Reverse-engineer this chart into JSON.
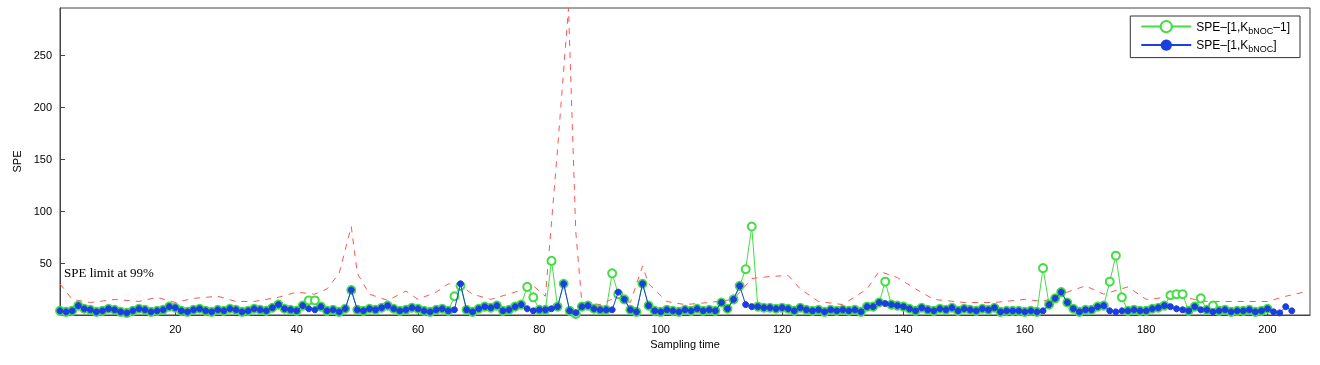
{
  "chart_data": {
    "type": "line",
    "xlabel": "Sampling time",
    "ylabel": "SPE",
    "xlim": [
      1,
      207
    ],
    "xticks": [
      20,
      40,
      60,
      80,
      100,
      120,
      140,
      160,
      180,
      200
    ],
    "ylim": [
      0,
      295
    ],
    "yticks": [
      50,
      100,
      150,
      200,
      250
    ],
    "grid": false,
    "legend": "top right",
    "annotations": [
      "SPE limit at 99%"
    ],
    "series": [
      {
        "name": "SPE–[1,K$_{bNOC}$–1]",
        "color": "#44dd44",
        "marker": "circle",
        "line_style": "solid",
        "x": [
          1,
          2,
          3,
          4,
          5,
          6,
          7,
          8,
          9,
          10,
          11,
          12,
          13,
          14,
          15,
          16,
          17,
          18,
          19,
          20,
          21,
          22,
          23,
          24,
          25,
          26,
          27,
          28,
          29,
          30,
          31,
          32,
          33,
          34,
          35,
          36,
          37,
          38,
          39,
          40,
          41,
          42,
          43,
          44,
          45,
          46,
          47,
          48,
          49,
          50,
          51,
          52,
          53,
          54,
          55,
          56,
          57,
          58,
          59,
          60,
          61,
          62,
          63,
          64,
          65,
          66,
          67,
          68,
          69,
          70,
          71,
          72,
          73,
          74,
          75,
          76,
          77,
          78,
          79,
          80,
          81,
          82,
          83,
          84,
          85,
          86,
          87,
          88,
          89,
          90,
          91,
          92,
          93,
          94,
          95,
          96,
          97,
          98,
          99,
          100,
          101,
          102,
          103,
          104,
          105,
          106,
          107,
          108,
          109,
          110,
          111,
          112,
          113,
          114,
          115,
          116,
          117,
          118,
          119,
          120,
          121,
          122,
          123,
          124,
          125,
          126,
          127,
          128,
          129,
          130,
          131,
          132,
          133,
          134,
          135,
          136,
          137,
          138,
          139,
          140,
          141,
          142,
          143,
          144,
          145,
          146,
          147,
          148,
          149,
          150,
          151,
          152,
          153,
          154,
          155,
          156,
          157,
          158,
          159,
          160,
          161,
          162,
          163,
          164,
          165,
          166,
          167,
          168,
          169,
          170,
          171,
          172,
          173,
          174,
          175,
          176,
          177,
          178,
          179,
          180,
          181,
          182,
          183,
          184,
          185,
          186,
          187,
          188,
          189,
          190,
          191,
          192,
          193,
          194,
          195,
          196,
          197,
          198,
          199,
          200
        ],
        "values": [
          4,
          3,
          4,
          9,
          6,
          5,
          3,
          4,
          6,
          5,
          3,
          2,
          4,
          6,
          5,
          3,
          4,
          5,
          8,
          7,
          4,
          3,
          5,
          6,
          4,
          3,
          5,
          4,
          6,
          5,
          3,
          4,
          6,
          5,
          4,
          7,
          10,
          6,
          5,
          4,
          9,
          14,
          14,
          8,
          4,
          5,
          3,
          6,
          24,
          5,
          4,
          6,
          5,
          7,
          9,
          6,
          4,
          5,
          7,
          6,
          4,
          3,
          5,
          6,
          4,
          18,
          28,
          5,
          3,
          6,
          8,
          7,
          9,
          4,
          5,
          8,
          10,
          27,
          17,
          5,
          5,
          52,
          8,
          30,
          4,
          1,
          8,
          9,
          6,
          5,
          5,
          40,
          20,
          15,
          5,
          3,
          30,
          9,
          4,
          3,
          5,
          4,
          3,
          5,
          4,
          6,
          4,
          5,
          4,
          12,
          6,
          15,
          28,
          44,
          85,
          8,
          7,
          7,
          6,
          7,
          6,
          4,
          7,
          5,
          4,
          5,
          3,
          5,
          4,
          5,
          4,
          5,
          3,
          8,
          8,
          12,
          32,
          10,
          9,
          8,
          6,
          4,
          7,
          5,
          4,
          6,
          5,
          7,
          4,
          6,
          5,
          4,
          6,
          5,
          7,
          3,
          4,
          4,
          4,
          3,
          4,
          3,
          45,
          10,
          16,
          22,
          12,
          6,
          3,
          5,
          5,
          8,
          9,
          32,
          57,
          17,
          4,
          5,
          4,
          4,
          6,
          7,
          9,
          19,
          20,
          20,
          4,
          8,
          16,
          5,
          9,
          4,
          5,
          3,
          4,
          4,
          5,
          3,
          4,
          6
        ]
      },
      {
        "name": "SPE–[1,K$_{bNOC}$]",
        "color": "#1a3fe0",
        "marker": "circle",
        "line_style": "solid",
        "x": [
          1,
          2,
          3,
          4,
          5,
          6,
          7,
          8,
          9,
          10,
          11,
          12,
          13,
          14,
          15,
          16,
          17,
          18,
          19,
          20,
          21,
          22,
          23,
          24,
          25,
          26,
          27,
          28,
          29,
          30,
          31,
          32,
          33,
          34,
          35,
          36,
          37,
          38,
          39,
          40,
          41,
          42,
          43,
          44,
          45,
          46,
          47,
          48,
          49,
          50,
          51,
          52,
          53,
          54,
          55,
          56,
          57,
          58,
          59,
          60,
          61,
          62,
          63,
          64,
          65,
          66,
          67,
          68,
          69,
          70,
          71,
          72,
          73,
          74,
          75,
          76,
          77,
          78,
          79,
          80,
          81,
          82,
          83,
          84,
          85,
          86,
          87,
          88,
          89,
          90,
          91,
          92,
          93,
          94,
          95,
          96,
          97,
          98,
          99,
          100,
          101,
          102,
          103,
          104,
          105,
          106,
          107,
          108,
          109,
          110,
          111,
          112,
          113,
          114,
          115,
          116,
          117,
          118,
          119,
          120,
          121,
          122,
          123,
          124,
          125,
          126,
          127,
          128,
          129,
          130,
          131,
          132,
          133,
          134,
          135,
          136,
          137,
          138,
          139,
          140,
          141,
          142,
          143,
          144,
          145,
          146,
          147,
          148,
          149,
          150,
          151,
          152,
          153,
          154,
          155,
          156,
          157,
          158,
          159,
          160,
          161,
          162,
          163,
          164,
          165,
          166,
          167,
          168,
          169,
          170,
          171,
          172,
          173,
          174,
          175,
          176,
          177,
          178,
          179,
          180,
          181,
          182,
          183,
          184,
          185,
          186,
          187,
          188,
          189,
          190,
          191,
          192,
          193,
          194,
          195,
          196,
          197,
          198,
          199,
          200,
          201,
          202,
          203,
          204
        ],
        "values": [
          4,
          3,
          4,
          9,
          6,
          5,
          3,
          4,
          6,
          5,
          3,
          2,
          4,
          6,
          5,
          3,
          4,
          5,
          8,
          7,
          4,
          3,
          5,
          6,
          4,
          3,
          5,
          4,
          6,
          5,
          3,
          4,
          6,
          5,
          4,
          7,
          10,
          6,
          5,
          4,
          9,
          6,
          5,
          8,
          4,
          5,
          3,
          6,
          24,
          5,
          4,
          6,
          5,
          7,
          9,
          6,
          4,
          5,
          7,
          6,
          4,
          3,
          5,
          6,
          4,
          5,
          30,
          5,
          3,
          6,
          8,
          7,
          9,
          4,
          5,
          8,
          10,
          6,
          4,
          5,
          5,
          6,
          8,
          30,
          4,
          2,
          8,
          9,
          6,
          5,
          5,
          5,
          22,
          15,
          5,
          3,
          30,
          9,
          4,
          3,
          5,
          4,
          3,
          5,
          4,
          6,
          4,
          5,
          4,
          12,
          6,
          15,
          28,
          10,
          8,
          8,
          7,
          7,
          6,
          7,
          6,
          4,
          7,
          5,
          4,
          5,
          3,
          5,
          4,
          5,
          4,
          5,
          3,
          8,
          8,
          12,
          11,
          10,
          9,
          8,
          6,
          4,
          7,
          5,
          4,
          6,
          5,
          7,
          4,
          6,
          5,
          4,
          6,
          5,
          7,
          3,
          4,
          4,
          4,
          3,
          4,
          3,
          4,
          10,
          16,
          22,
          12,
          6,
          3,
          5,
          5,
          8,
          9,
          4,
          3,
          4,
          4,
          5,
          4,
          4,
          6,
          7,
          9,
          8,
          6,
          5,
          4,
          8,
          5,
          5,
          3,
          4,
          5,
          3,
          4,
          4,
          5,
          3,
          4,
          6,
          3,
          2,
          8,
          4
        ]
      },
      {
        "color": "#ff5555",
        "marker": "none",
        "line_style": "dashed",
        "x": [
          1,
          3,
          6,
          10,
          14,
          17,
          20,
          23,
          27,
          30,
          33,
          37,
          40,
          43,
          45,
          47,
          49,
          50,
          52,
          55,
          58,
          60,
          63,
          65,
          67,
          69,
          72,
          76,
          79,
          81,
          83,
          84.8,
          86,
          87,
          90,
          93,
          95,
          97,
          98,
          101,
          104,
          108,
          112,
          115,
          118,
          121,
          123,
          126,
          130,
          134,
          136,
          139,
          142,
          145,
          150,
          155,
          160,
          163,
          167,
          170,
          173,
          177,
          180,
          185,
          190,
          195,
          200,
          203,
          206
        ],
        "values": [
          30,
          15,
          12,
          15,
          13,
          17,
          12,
          16,
          18,
          13,
          13,
          17,
          22,
          20,
          25,
          40,
          85,
          40,
          20,
          14,
          23,
          15,
          22,
          30,
          28,
          20,
          15,
          22,
          28,
          18,
          160,
          295,
          80,
          12,
          10,
          18,
          12,
          47,
          30,
          13,
          10,
          12,
          15,
          35,
          37,
          38,
          25,
          13,
          10,
          25,
          42,
          36,
          25,
          15,
          12,
          12,
          15,
          13,
          22,
          28,
          20,
          27,
          15,
          18,
          13,
          13,
          13,
          18,
          22
        ]
      }
    ]
  }
}
